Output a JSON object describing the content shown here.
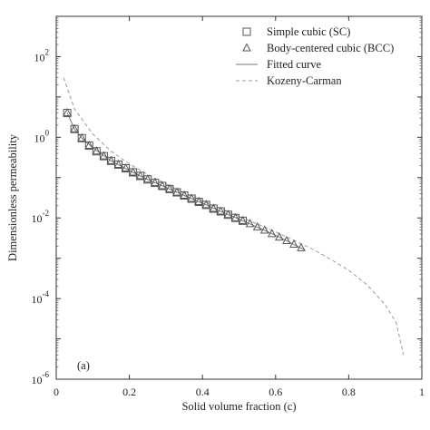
{
  "chart_data": {
    "type": "scatter",
    "panel_label": "(a)",
    "xlabel": "Solid volume fraction (c)",
    "ylabel": "Dimensionless permeability",
    "xlim": [
      0,
      1
    ],
    "ylim": [
      1e-06,
      1000
    ],
    "y_scale": "log",
    "grid": false,
    "legend_position": "top-right",
    "x_ticks": [
      {
        "value": 0,
        "label": "0"
      },
      {
        "value": 0.2,
        "label": "0.2"
      },
      {
        "value": 0.4,
        "label": "0.4"
      },
      {
        "value": 0.6,
        "label": "0.6"
      },
      {
        "value": 0.8,
        "label": "0.8"
      },
      {
        "value": 1,
        "label": "1"
      }
    ],
    "y_ticks": [
      {
        "value": 1e-06,
        "base": "10",
        "exp": "-6"
      },
      {
        "value": 0.0001,
        "base": "10",
        "exp": "-4"
      },
      {
        "value": 0.01,
        "base": "10",
        "exp": "-2"
      },
      {
        "value": 1,
        "base": "10",
        "exp": "0"
      },
      {
        "value": 100,
        "base": "10",
        "exp": "2"
      }
    ],
    "series": [
      {
        "name": "Simple cubic (SC)",
        "marker": "square",
        "color": "#555555",
        "x": [
          0.03,
          0.05,
          0.07,
          0.09,
          0.11,
          0.13,
          0.15,
          0.17,
          0.19,
          0.21,
          0.23,
          0.25,
          0.27,
          0.29,
          0.31,
          0.33,
          0.35,
          0.37,
          0.39,
          0.41,
          0.43,
          0.45,
          0.47,
          0.49,
          0.51
        ],
        "y": [
          4.0,
          1.6,
          0.95,
          0.62,
          0.45,
          0.34,
          0.26,
          0.21,
          0.17,
          0.135,
          0.11,
          0.09,
          0.074,
          0.062,
          0.052,
          0.043,
          0.036,
          0.03,
          0.025,
          0.021,
          0.017,
          0.0145,
          0.012,
          0.01,
          0.0085
        ]
      },
      {
        "name": "Body-centered cubic (BCC)",
        "marker": "triangle",
        "color": "#555555",
        "x": [
          0.03,
          0.05,
          0.07,
          0.09,
          0.11,
          0.13,
          0.15,
          0.17,
          0.19,
          0.21,
          0.23,
          0.25,
          0.27,
          0.29,
          0.31,
          0.33,
          0.35,
          0.37,
          0.39,
          0.41,
          0.43,
          0.45,
          0.47,
          0.49,
          0.51,
          0.53,
          0.55,
          0.57,
          0.59,
          0.61,
          0.63,
          0.65,
          0.67
        ],
        "y": [
          4.0,
          1.6,
          0.95,
          0.62,
          0.45,
          0.34,
          0.26,
          0.21,
          0.17,
          0.135,
          0.11,
          0.09,
          0.074,
          0.062,
          0.052,
          0.043,
          0.036,
          0.03,
          0.025,
          0.021,
          0.017,
          0.0145,
          0.012,
          0.01,
          0.0085,
          0.0071,
          0.0059,
          0.0049,
          0.004,
          0.0033,
          0.0027,
          0.0022,
          0.0018
        ]
      },
      {
        "name": "Fitted curve",
        "style": "solid",
        "color": "#777777",
        "x": [
          0.03,
          0.05,
          0.07,
          0.1,
          0.15,
          0.2,
          0.25,
          0.3,
          0.35,
          0.4,
          0.45,
          0.5,
          0.55,
          0.6,
          0.65,
          0.68
        ],
        "y": [
          4.0,
          1.6,
          0.95,
          0.55,
          0.26,
          0.15,
          0.09,
          0.057,
          0.036,
          0.023,
          0.0145,
          0.0093,
          0.0059,
          0.0037,
          0.0022,
          0.0016
        ]
      },
      {
        "name": "Kozeny-Carman",
        "style": "dashed",
        "color": "#999999",
        "x": [
          0.02,
          0.05,
          0.1,
          0.15,
          0.2,
          0.25,
          0.3,
          0.35,
          0.4,
          0.45,
          0.5,
          0.55,
          0.6,
          0.65,
          0.7,
          0.75,
          0.8,
          0.85,
          0.9,
          0.93,
          0.95
        ],
        "y": [
          30,
          5.0,
          1.2,
          0.45,
          0.22,
          0.12,
          0.07,
          0.042,
          0.027,
          0.017,
          0.011,
          0.0071,
          0.0045,
          0.0028,
          0.0017,
          0.00095,
          0.0005,
          0.00022,
          7e-05,
          2.5e-05,
          4e-06
        ]
      }
    ]
  }
}
